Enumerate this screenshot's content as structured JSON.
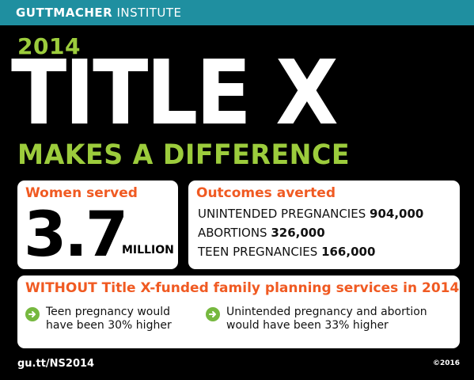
{
  "brand": {
    "bold": "GUTTMACHER",
    "light": "INSTITUTE"
  },
  "year": "2014",
  "title": "TITLE X",
  "subtitle": "MAKES A DIFFERENCE",
  "women": {
    "heading": "Women served",
    "number": "3.7",
    "unit": "MILLION"
  },
  "outcomes": {
    "heading": "Outcomes averted",
    "items": [
      {
        "label": "UNINTENDED PREGNANCIES",
        "value": "904,000"
      },
      {
        "label": "ABORTIONS",
        "value": "326,000"
      },
      {
        "label": "TEEN PREGNANCIES",
        "value": "166,000"
      }
    ]
  },
  "without": {
    "heading": "WITHOUT Title X-funded family planning services in 2014",
    "points": [
      {
        "text": "Teen pregnancy would\nhave been 30% higher"
      },
      {
        "text": "Unintended pregnancy and abortion\nwould have been 33% higher"
      }
    ]
  },
  "footer": {
    "link": "gu.tt/NS2014",
    "year": "©2016"
  },
  "colors": {
    "teal": "#1f8fa0",
    "green": "#9ccc3c",
    "orange": "#f05a22",
    "arrow": "#76b83f"
  },
  "icons": {
    "point_icon": "arrow-right-circle-icon"
  }
}
